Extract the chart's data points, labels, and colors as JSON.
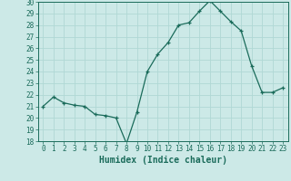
{
  "x": [
    0,
    1,
    2,
    3,
    4,
    5,
    6,
    7,
    8,
    9,
    10,
    11,
    12,
    13,
    14,
    15,
    16,
    17,
    18,
    19,
    20,
    21,
    22,
    23
  ],
  "y": [
    21.0,
    21.8,
    21.3,
    21.1,
    21.0,
    20.3,
    20.2,
    20.0,
    17.8,
    20.5,
    24.0,
    25.5,
    26.5,
    28.0,
    28.2,
    29.2,
    30.1,
    29.2,
    28.3,
    27.5,
    24.5,
    22.2,
    22.2,
    22.6
  ],
  "line_color": "#1a6b5a",
  "marker": "+",
  "marker_color": "#1a6b5a",
  "bg_color": "#cce9e7",
  "grid_color": "#b0d8d5",
  "axis_color": "#1a6b5a",
  "xlabel": "Humidex (Indice chaleur)",
  "xlim": [
    -0.5,
    23.5
  ],
  "ylim": [
    18,
    30
  ],
  "xticks": [
    0,
    1,
    2,
    3,
    4,
    5,
    6,
    7,
    8,
    9,
    10,
    11,
    12,
    13,
    14,
    15,
    16,
    17,
    18,
    19,
    20,
    21,
    22,
    23
  ],
  "yticks": [
    18,
    19,
    20,
    21,
    22,
    23,
    24,
    25,
    26,
    27,
    28,
    29,
    30
  ],
  "tick_fontsize": 5.5,
  "label_fontsize": 7.0
}
